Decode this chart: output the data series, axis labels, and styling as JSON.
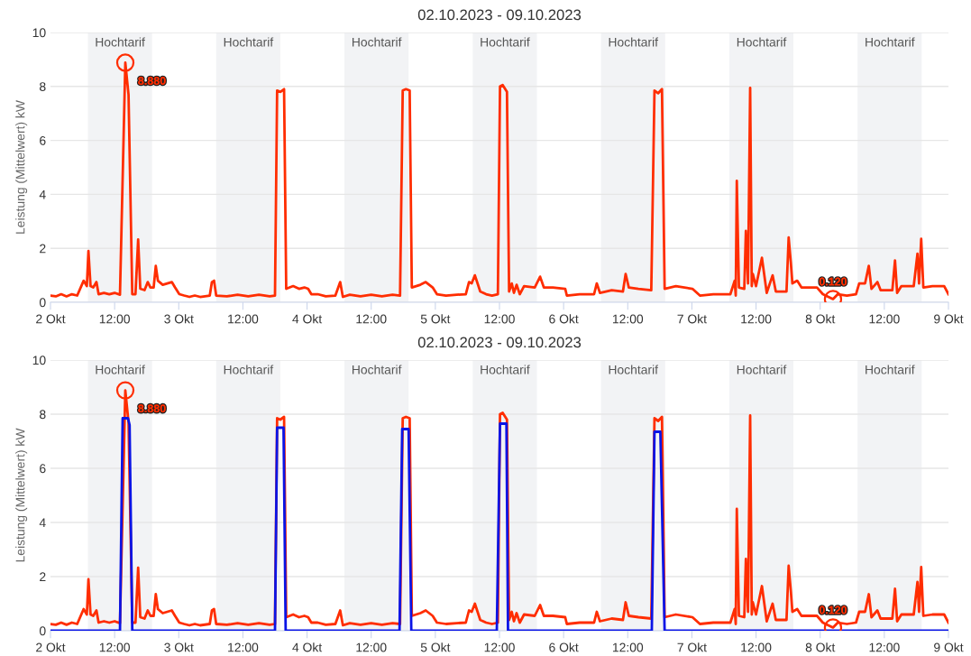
{
  "chart_data": [
    {
      "type": "line",
      "title": "02.10.2023 - 09.10.2023",
      "ylabel": "Leistung (Mittelwert) kW",
      "xlim": [
        "2023-10-02T00:00",
        "2023-10-09T00:00"
      ],
      "xticks": [
        {
          "value": "2023-10-02T00:00",
          "label": "2 Okt"
        },
        {
          "value": "2023-10-02T12:00",
          "label": "12:00"
        },
        {
          "value": "2023-10-03T00:00",
          "label": "3 Okt"
        },
        {
          "value": "2023-10-03T12:00",
          "label": "12:00"
        },
        {
          "value": "2023-10-04T00:00",
          "label": "4 Okt"
        },
        {
          "value": "2023-10-04T12:00",
          "label": "12:00"
        },
        {
          "value": "2023-10-05T00:00",
          "label": "5 Okt"
        },
        {
          "value": "2023-10-05T12:00",
          "label": "12:00"
        },
        {
          "value": "2023-10-06T00:00",
          "label": "6 Okt"
        },
        {
          "value": "2023-10-06T12:00",
          "label": "12:00"
        },
        {
          "value": "2023-10-07T00:00",
          "label": "7 Okt"
        },
        {
          "value": "2023-10-07T12:00",
          "label": "12:00"
        },
        {
          "value": "2023-10-08T00:00",
          "label": "8 Okt"
        },
        {
          "value": "2023-10-08T12:00",
          "label": "12:00"
        },
        {
          "value": "2023-10-09T00:00",
          "label": "9 Okt"
        }
      ],
      "ylim": [
        0,
        10
      ],
      "yticks": [
        0,
        2,
        4,
        6,
        8,
        10
      ],
      "grid": "y",
      "marker": "none",
      "line_style": "solid",
      "bands": [
        {
          "axis": "x",
          "from": "2023-10-02T07:00",
          "to": "2023-10-02T19:00",
          "label": "Hochtarif",
          "color": "#f2f3f5"
        },
        {
          "axis": "x",
          "from": "2023-10-03T07:00",
          "to": "2023-10-03T19:00",
          "label": "Hochtarif",
          "color": "#f2f3f5"
        },
        {
          "axis": "x",
          "from": "2023-10-04T07:00",
          "to": "2023-10-04T19:00",
          "label": "Hochtarif",
          "color": "#f2f3f5"
        },
        {
          "axis": "x",
          "from": "2023-10-05T07:00",
          "to": "2023-10-05T19:00",
          "label": "Hochtarif",
          "color": "#f2f3f5"
        },
        {
          "axis": "x",
          "from": "2023-10-06T07:00",
          "to": "2023-10-06T19:00",
          "label": "Hochtarif",
          "color": "#f2f3f5"
        },
        {
          "axis": "x",
          "from": "2023-10-07T07:00",
          "to": "2023-10-07T19:00",
          "label": "Hochtarif",
          "color": "#f2f3f5"
        },
        {
          "axis": "x",
          "from": "2023-10-08T07:00",
          "to": "2023-10-08T19:00",
          "label": "Hochtarif",
          "color": "#f2f3f5"
        }
      ],
      "annotations": [
        {
          "text": "8.880",
          "x": "2023-10-02T14:00",
          "y": 8.88
        },
        {
          "text": "0.120",
          "x": "2023-10-08T02:24",
          "y": 0.12
        }
      ],
      "series": [
        {
          "color": "#ff2d00",
          "x": [
            "2023-10-02T00:00",
            "2023-10-02T01:00",
            "2023-10-02T02:00",
            "2023-10-02T03:00",
            "2023-10-02T04:00",
            "2023-10-02T05:00",
            "2023-10-02T06:12",
            "2023-10-02T06:48",
            "2023-10-02T07:06",
            "2023-10-02T07:30",
            "2023-10-02T08:00",
            "2023-10-02T08:36",
            "2023-10-02T09:00",
            "2023-10-02T10:00",
            "2023-10-02T11:00",
            "2023-10-02T12:00",
            "2023-10-02T13:00",
            "2023-10-02T14:00",
            "2023-10-02T14:36",
            "2023-10-02T15:18",
            "2023-10-02T15:54",
            "2023-10-02T16:24",
            "2023-10-02T16:48",
            "2023-10-02T17:36",
            "2023-10-02T18:12",
            "2023-10-02T18:42",
            "2023-10-02T19:18",
            "2023-10-02T19:42",
            "2023-10-02T20:06",
            "2023-10-02T21:00",
            "2023-10-02T22:42",
            "2023-10-02T23:18",
            "2023-10-03T00:06",
            "2023-10-03T01:00",
            "2023-10-03T02:00",
            "2023-10-03T03:00",
            "2023-10-03T04:00",
            "2023-10-03T05:48",
            "2023-10-03T06:12",
            "2023-10-03T06:36",
            "2023-10-03T07:00",
            "2023-10-03T09:00",
            "2023-10-03T11:00",
            "2023-10-03T13:00",
            "2023-10-03T15:00",
            "2023-10-03T17:00",
            "2023-10-03T18:00",
            "2023-10-03T18:24",
            "2023-10-03T19:00",
            "2023-10-03T19:42",
            "2023-10-03T20:06",
            "2023-10-03T21:24",
            "2023-10-03T22:30",
            "2023-10-03T23:30",
            "2023-10-04T00:12",
            "2023-10-04T00:48",
            "2023-10-04T02:00",
            "2023-10-04T03:30",
            "2023-10-04T05:18",
            "2023-10-04T06:12",
            "2023-10-04T06:42",
            "2023-10-04T08:00",
            "2023-10-04T10:00",
            "2023-10-04T12:00",
            "2023-10-04T14:00",
            "2023-10-04T16:00",
            "2023-10-04T17:24",
            "2023-10-04T17:54",
            "2023-10-04T18:30",
            "2023-10-04T19:12",
            "2023-10-04T19:36",
            "2023-10-04T21:12",
            "2023-10-04T22:12",
            "2023-10-04T23:30",
            "2023-10-05T00:18",
            "2023-10-05T02:00",
            "2023-10-05T04:00",
            "2023-10-05T05:42",
            "2023-10-05T06:18",
            "2023-10-05T06:48",
            "2023-10-05T07:24",
            "2023-10-05T08:24",
            "2023-10-05T09:30",
            "2023-10-05T10:36",
            "2023-10-05T11:42",
            "2023-10-05T12:06",
            "2023-10-05T12:36",
            "2023-10-05T13:24",
            "2023-10-05T13:48",
            "2023-10-05T14:18",
            "2023-10-05T14:42",
            "2023-10-05T15:12",
            "2023-10-05T15:48",
            "2023-10-05T16:36",
            "2023-10-05T18:36",
            "2023-10-05T19:36",
            "2023-10-05T20:18",
            "2023-10-05T22:00",
            "2023-10-06T00:18",
            "2023-10-06T00:36",
            "2023-10-06T03:00",
            "2023-10-06T05:42",
            "2023-10-06T06:12",
            "2023-10-06T06:48",
            "2023-10-06T09:00",
            "2023-10-06T11:06",
            "2023-10-06T11:36",
            "2023-10-06T12:12",
            "2023-10-06T14:00",
            "2023-10-06T16:24",
            "2023-10-06T17:00",
            "2023-10-06T17:42",
            "2023-10-06T18:24",
            "2023-10-06T18:54",
            "2023-10-06T21:00",
            "2023-10-07T00:06",
            "2023-10-07T01:30",
            "2023-10-07T04:00",
            "2023-10-07T07:12",
            "2023-10-07T08:00",
            "2023-10-07T08:12",
            "2023-10-07T08:24",
            "2023-10-07T08:48",
            "2023-10-07T09:48",
            "2023-10-07T10:06",
            "2023-10-07T10:30",
            "2023-10-07T10:54",
            "2023-10-07T11:12",
            "2023-10-07T11:24",
            "2023-10-07T12:00",
            "2023-10-07T13:06",
            "2023-10-07T14:00",
            "2023-10-07T15:06",
            "2023-10-07T15:42",
            "2023-10-07T17:42",
            "2023-10-07T18:06",
            "2023-10-07T18:30",
            "2023-10-07T18:48",
            "2023-10-07T19:42",
            "2023-10-07T20:30",
            "2023-10-07T23:24",
            "2023-10-08T00:30",
            "2023-10-08T02:24",
            "2023-10-08T03:18",
            "2023-10-08T05:00",
            "2023-10-08T06:42",
            "2023-10-08T07:18",
            "2023-10-08T08:24",
            "2023-10-08T09:06",
            "2023-10-08T09:36",
            "2023-10-08T10:42",
            "2023-10-08T11:18",
            "2023-10-08T13:30",
            "2023-10-08T14:00",
            "2023-10-08T14:24",
            "2023-10-08T15:12",
            "2023-10-08T17:30",
            "2023-10-08T18:12",
            "2023-10-08T18:30",
            "2023-10-08T18:54",
            "2023-10-08T19:18",
            "2023-10-08T21:00",
            "2023-10-08T23:12",
            "2023-10-09T00:00"
          ],
          "values": [
            0.25,
            0.22,
            0.3,
            0.22,
            0.3,
            0.25,
            0.8,
            0.6,
            1.9,
            0.6,
            0.55,
            0.75,
            0.3,
            0.35,
            0.3,
            0.35,
            0.28,
            8.88,
            7.7,
            0.3,
            0.3,
            2.33,
            0.5,
            0.45,
            0.75,
            0.55,
            0.55,
            1.35,
            0.8,
            0.65,
            0.75,
            0.55,
            0.3,
            0.25,
            0.2,
            0.25,
            0.2,
            0.25,
            0.75,
            0.8,
            0.25,
            0.22,
            0.28,
            0.22,
            0.28,
            0.22,
            0.25,
            7.85,
            7.8,
            7.9,
            0.5,
            0.6,
            0.5,
            0.55,
            0.5,
            0.3,
            0.3,
            0.22,
            0.25,
            0.75,
            0.2,
            0.28,
            0.22,
            0.28,
            0.22,
            0.28,
            0.25,
            7.85,
            7.9,
            7.85,
            0.55,
            0.65,
            0.75,
            0.55,
            0.3,
            0.25,
            0.28,
            0.3,
            0.75,
            0.7,
            1.0,
            0.4,
            0.3,
            0.25,
            0.3,
            8.0,
            8.05,
            7.8,
            0.4,
            0.7,
            0.35,
            0.65,
            0.3,
            0.6,
            0.55,
            0.95,
            0.55,
            0.55,
            0.5,
            0.25,
            0.3,
            0.3,
            0.7,
            0.35,
            0.45,
            0.4,
            1.05,
            0.55,
            0.5,
            0.45,
            7.85,
            7.75,
            7.9,
            0.5,
            0.6,
            0.5,
            0.25,
            0.3,
            0.3,
            0.8,
            0.25,
            4.5,
            0.55,
            0.5,
            2.65,
            0.7,
            7.95,
            0.6,
            1.05,
            0.6,
            1.65,
            0.35,
            1.0,
            0.4,
            0.4,
            2.4,
            1.5,
            0.7,
            0.8,
            0.55,
            0.55,
            0.3,
            0.12,
            0.3,
            0.25,
            0.3,
            0.7,
            0.7,
            1.35,
            0.5,
            0.75,
            0.45,
            0.45,
            1.55,
            0.35,
            0.6,
            0.6,
            1.8,
            0.7,
            2.35,
            0.55,
            0.6,
            0.6,
            0.3
          ]
        }
      ]
    },
    {
      "type": "line",
      "title": "02.10.2023 - 09.10.2023",
      "ylabel": "Leistung (Mittelwert) kW",
      "xlim": [
        "2023-10-02T00:00",
        "2023-10-09T00:00"
      ],
      "xticks": [
        {
          "value": "2023-10-02T00:00",
          "label": "2 Okt"
        },
        {
          "value": "2023-10-02T12:00",
          "label": "12:00"
        },
        {
          "value": "2023-10-03T00:00",
          "label": "3 Okt"
        },
        {
          "value": "2023-10-03T12:00",
          "label": "12:00"
        },
        {
          "value": "2023-10-04T00:00",
          "label": "4 Okt"
        },
        {
          "value": "2023-10-04T12:00",
          "label": "12:00"
        },
        {
          "value": "2023-10-05T00:00",
          "label": "5 Okt"
        },
        {
          "value": "2023-10-05T12:00",
          "label": "12:00"
        },
        {
          "value": "2023-10-06T00:00",
          "label": "6 Okt"
        },
        {
          "value": "2023-10-06T12:00",
          "label": "12:00"
        },
        {
          "value": "2023-10-07T00:00",
          "label": "7 Okt"
        },
        {
          "value": "2023-10-07T12:00",
          "label": "12:00"
        },
        {
          "value": "2023-10-08T00:00",
          "label": "8 Okt"
        },
        {
          "value": "2023-10-08T12:00",
          "label": "12:00"
        },
        {
          "value": "2023-10-09T00:00",
          "label": "9 Okt"
        }
      ],
      "ylim": [
        0,
        10
      ],
      "yticks": [
        0,
        2,
        4,
        6,
        8,
        10
      ],
      "grid": "y",
      "marker": "none",
      "line_style": "solid",
      "bands": [
        {
          "axis": "x",
          "from": "2023-10-02T07:00",
          "to": "2023-10-02T19:00",
          "label": "Hochtarif",
          "color": "#f2f3f5"
        },
        {
          "axis": "x",
          "from": "2023-10-03T07:00",
          "to": "2023-10-03T19:00",
          "label": "Hochtarif",
          "color": "#f2f3f5"
        },
        {
          "axis": "x",
          "from": "2023-10-04T07:00",
          "to": "2023-10-04T19:00",
          "label": "Hochtarif",
          "color": "#f2f3f5"
        },
        {
          "axis": "x",
          "from": "2023-10-05T07:00",
          "to": "2023-10-05T19:00",
          "label": "Hochtarif",
          "color": "#f2f3f5"
        },
        {
          "axis": "x",
          "from": "2023-10-06T07:00",
          "to": "2023-10-06T19:00",
          "label": "Hochtarif",
          "color": "#f2f3f5"
        },
        {
          "axis": "x",
          "from": "2023-10-07T07:00",
          "to": "2023-10-07T19:00",
          "label": "Hochtarif",
          "color": "#f2f3f5"
        },
        {
          "axis": "x",
          "from": "2023-10-08T07:00",
          "to": "2023-10-08T19:00",
          "label": "Hochtarif",
          "color": "#f2f3f5"
        }
      ],
      "annotations": [
        {
          "text": "8.880",
          "x": "2023-10-02T14:00",
          "y": 8.88
        },
        {
          "text": "0.120",
          "x": "2023-10-08T02:24",
          "y": 0.12
        }
      ],
      "series": [
        {
          "color": "#ff2d00",
          "x": [
            "2023-10-02T00:00",
            "2023-10-02T01:00",
            "2023-10-02T02:00",
            "2023-10-02T03:00",
            "2023-10-02T04:00",
            "2023-10-02T05:00",
            "2023-10-02T06:12",
            "2023-10-02T06:48",
            "2023-10-02T07:06",
            "2023-10-02T07:30",
            "2023-10-02T08:00",
            "2023-10-02T08:36",
            "2023-10-02T09:00",
            "2023-10-02T10:00",
            "2023-10-02T11:00",
            "2023-10-02T12:00",
            "2023-10-02T13:00",
            "2023-10-02T14:00",
            "2023-10-02T14:36",
            "2023-10-02T15:18",
            "2023-10-02T15:54",
            "2023-10-02T16:24",
            "2023-10-02T16:48",
            "2023-10-02T17:36",
            "2023-10-02T18:12",
            "2023-10-02T18:42",
            "2023-10-02T19:18",
            "2023-10-02T19:42",
            "2023-10-02T20:06",
            "2023-10-02T21:00",
            "2023-10-02T22:42",
            "2023-10-02T23:18",
            "2023-10-03T00:06",
            "2023-10-03T01:00",
            "2023-10-03T02:00",
            "2023-10-03T03:00",
            "2023-10-03T04:00",
            "2023-10-03T05:48",
            "2023-10-03T06:12",
            "2023-10-03T06:36",
            "2023-10-03T07:00",
            "2023-10-03T09:00",
            "2023-10-03T11:00",
            "2023-10-03T13:00",
            "2023-10-03T15:00",
            "2023-10-03T17:00",
            "2023-10-03T18:00",
            "2023-10-03T18:24",
            "2023-10-03T19:00",
            "2023-10-03T19:42",
            "2023-10-03T20:06",
            "2023-10-03T21:24",
            "2023-10-03T22:30",
            "2023-10-03T23:30",
            "2023-10-04T00:12",
            "2023-10-04T00:48",
            "2023-10-04T02:00",
            "2023-10-04T03:30",
            "2023-10-04T05:18",
            "2023-10-04T06:12",
            "2023-10-04T06:42",
            "2023-10-04T08:00",
            "2023-10-04T10:00",
            "2023-10-04T12:00",
            "2023-10-04T14:00",
            "2023-10-04T16:00",
            "2023-10-04T17:24",
            "2023-10-04T17:54",
            "2023-10-04T18:30",
            "2023-10-04T19:12",
            "2023-10-04T19:36",
            "2023-10-04T21:12",
            "2023-10-04T22:12",
            "2023-10-04T23:30",
            "2023-10-05T00:18",
            "2023-10-05T02:00",
            "2023-10-05T04:00",
            "2023-10-05T05:42",
            "2023-10-05T06:18",
            "2023-10-05T06:48",
            "2023-10-05T07:24",
            "2023-10-05T08:24",
            "2023-10-05T09:30",
            "2023-10-05T10:36",
            "2023-10-05T11:42",
            "2023-10-05T12:06",
            "2023-10-05T12:36",
            "2023-10-05T13:24",
            "2023-10-05T13:48",
            "2023-10-05T14:18",
            "2023-10-05T14:42",
            "2023-10-05T15:12",
            "2023-10-05T15:48",
            "2023-10-05T16:36",
            "2023-10-05T18:36",
            "2023-10-05T19:36",
            "2023-10-05T20:18",
            "2023-10-05T22:00",
            "2023-10-06T00:18",
            "2023-10-06T00:36",
            "2023-10-06T03:00",
            "2023-10-06T05:42",
            "2023-10-06T06:12",
            "2023-10-06T06:48",
            "2023-10-06T09:00",
            "2023-10-06T11:06",
            "2023-10-06T11:36",
            "2023-10-06T12:12",
            "2023-10-06T14:00",
            "2023-10-06T16:24",
            "2023-10-06T17:00",
            "2023-10-06T17:42",
            "2023-10-06T18:24",
            "2023-10-06T18:54",
            "2023-10-06T21:00",
            "2023-10-07T00:06",
            "2023-10-07T01:30",
            "2023-10-07T04:00",
            "2023-10-07T07:12",
            "2023-10-07T08:00",
            "2023-10-07T08:12",
            "2023-10-07T08:24",
            "2023-10-07T08:48",
            "2023-10-07T09:48",
            "2023-10-07T10:06",
            "2023-10-07T10:30",
            "2023-10-07T10:54",
            "2023-10-07T11:12",
            "2023-10-07T11:24",
            "2023-10-07T12:00",
            "2023-10-07T13:06",
            "2023-10-07T14:00",
            "2023-10-07T15:06",
            "2023-10-07T15:42",
            "2023-10-07T17:42",
            "2023-10-07T18:06",
            "2023-10-07T18:30",
            "2023-10-07T18:48",
            "2023-10-07T19:42",
            "2023-10-07T20:30",
            "2023-10-07T23:24",
            "2023-10-08T00:30",
            "2023-10-08T02:24",
            "2023-10-08T03:18",
            "2023-10-08T05:00",
            "2023-10-08T06:42",
            "2023-10-08T07:18",
            "2023-10-08T08:24",
            "2023-10-08T09:06",
            "2023-10-08T09:36",
            "2023-10-08T10:42",
            "2023-10-08T11:18",
            "2023-10-08T13:30",
            "2023-10-08T14:00",
            "2023-10-08T14:24",
            "2023-10-08T15:12",
            "2023-10-08T17:30",
            "2023-10-08T18:12",
            "2023-10-08T18:30",
            "2023-10-08T18:54",
            "2023-10-08T19:18",
            "2023-10-08T21:00",
            "2023-10-08T23:12",
            "2023-10-09T00:00"
          ],
          "values": [
            0.25,
            0.22,
            0.3,
            0.22,
            0.3,
            0.25,
            0.8,
            0.6,
            1.9,
            0.6,
            0.55,
            0.75,
            0.3,
            0.35,
            0.3,
            0.35,
            0.28,
            8.88,
            7.7,
            0.3,
            0.3,
            2.33,
            0.5,
            0.45,
            0.75,
            0.55,
            0.55,
            1.35,
            0.8,
            0.65,
            0.75,
            0.55,
            0.3,
            0.25,
            0.2,
            0.25,
            0.2,
            0.25,
            0.75,
            0.8,
            0.25,
            0.22,
            0.28,
            0.22,
            0.28,
            0.22,
            0.25,
            7.85,
            7.8,
            7.9,
            0.5,
            0.6,
            0.5,
            0.55,
            0.5,
            0.3,
            0.3,
            0.22,
            0.25,
            0.75,
            0.2,
            0.28,
            0.22,
            0.28,
            0.22,
            0.28,
            0.25,
            7.85,
            7.9,
            7.85,
            0.55,
            0.65,
            0.75,
            0.55,
            0.3,
            0.25,
            0.28,
            0.3,
            0.75,
            0.7,
            1.0,
            0.4,
            0.3,
            0.25,
            0.3,
            8.0,
            8.05,
            7.8,
            0.4,
            0.7,
            0.35,
            0.65,
            0.3,
            0.6,
            0.55,
            0.95,
            0.55,
            0.55,
            0.5,
            0.25,
            0.3,
            0.3,
            0.7,
            0.35,
            0.45,
            0.4,
            1.05,
            0.55,
            0.5,
            0.45,
            7.85,
            7.75,
            7.9,
            0.5,
            0.6,
            0.5,
            0.25,
            0.3,
            0.3,
            0.8,
            0.25,
            4.5,
            0.55,
            0.5,
            2.65,
            0.7,
            7.95,
            0.6,
            1.05,
            0.6,
            1.65,
            0.35,
            1.0,
            0.4,
            0.4,
            2.4,
            1.5,
            0.7,
            0.8,
            0.55,
            0.55,
            0.3,
            0.12,
            0.3,
            0.25,
            0.3,
            0.7,
            0.7,
            1.35,
            0.5,
            0.75,
            0.45,
            0.45,
            1.55,
            0.35,
            0.6,
            0.6,
            1.8,
            0.7,
            2.35,
            0.55,
            0.6,
            0.6,
            0.3
          ]
        },
        {
          "color": "#0a14e6",
          "x": [
            "2023-10-02T00:00",
            "2023-10-02T13:00",
            "2023-10-02T13:30",
            "2023-10-02T14:30",
            "2023-10-02T14:48",
            "2023-10-02T15:18",
            "2023-10-03T18:00",
            "2023-10-03T18:24",
            "2023-10-03T19:36",
            "2023-10-03T20:00",
            "2023-10-04T17:18",
            "2023-10-04T17:48",
            "2023-10-04T19:00",
            "2023-10-04T19:30",
            "2023-10-05T11:30",
            "2023-10-05T12:06",
            "2023-10-05T13:18",
            "2023-10-05T13:36",
            "2023-10-06T16:30",
            "2023-10-06T17:00",
            "2023-10-06T18:06",
            "2023-10-06T18:54",
            "2023-10-09T00:00"
          ],
          "values": [
            0,
            0,
            7.85,
            7.85,
            7.6,
            0,
            0,
            7.5,
            7.5,
            0,
            0,
            7.45,
            7.45,
            0,
            0,
            7.65,
            7.65,
            0,
            0,
            7.35,
            7.35,
            0,
            0
          ]
        }
      ]
    }
  ]
}
